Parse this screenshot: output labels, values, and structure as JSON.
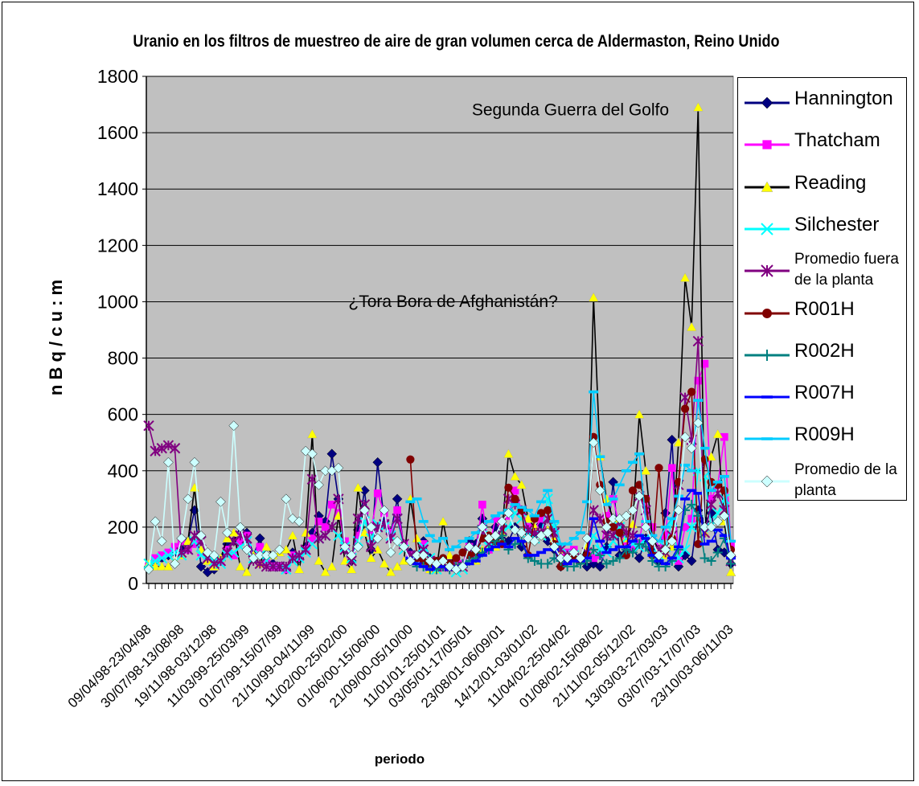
{
  "chart_data": {
    "type": "line",
    "title": "Uranio en los filtros de muestreo de aire de gran volumen cerca de Aldermaston, Reino Unido",
    "xlabel": "periodo",
    "ylabel": "n B q / c u : m",
    "ylim": [
      0,
      1800
    ],
    "yticks": [
      "0",
      "200",
      "400",
      "600",
      "800",
      "1000",
      "1200",
      "1400",
      "1600",
      "1800"
    ],
    "grid": true,
    "legend_position": "right",
    "x_tick_labels": [
      "09/04/98-23/04/98",
      "30/07/98-13/08/98",
      "19/11/98-03/12/98",
      "11/03/99-25/03/99",
      "01/07/99-15/07/99",
      "21/10/99-04/11/99",
      "11/02/00-25/02/00",
      "01/06/00-15/06/00",
      "21/09/00-05/10/00",
      "11/01/01-25/01/01",
      "03/05/01-17/05/01",
      "23/08/01-06/09/01",
      "14/12/01-03/01/02",
      "11/04/02-25/04/02",
      "01/08/02-15/08/02",
      "21/11/02-05/12/02",
      "13/03/03-27/03/03",
      "03/07/03-17/07/03",
      "23/10/03-06/11/03"
    ],
    "annotations": [
      {
        "text": "Segunda Guerra del Golfo",
        "x_index": 82,
        "y": 1690
      },
      {
        "text": "¿Tora Bora de Afghanistán?",
        "x_index": 65,
        "y": 1010
      }
    ],
    "n_points": 90,
    "series": [
      {
        "name": "Hannington",
        "color": "#000080",
        "marker": "diamond",
        "line": "#000080",
        "values": [
          60,
          80,
          90,
          100,
          110,
          120,
          150,
          260,
          60,
          40,
          50,
          80,
          140,
          150,
          200,
          180,
          100,
          160,
          90,
          70,
          60,
          50,
          110,
          90,
          130,
          180,
          240,
          220,
          460,
          300,
          120,
          80,
          190,
          330,
          120,
          430,
          220,
          180,
          300,
          130,
          110,
          100,
          150,
          90,
          70,
          60,
          80,
          50,
          60,
          150,
          140,
          230,
          120,
          200,
          170,
          150,
          200,
          130,
          170,
          180,
          210,
          150,
          120,
          60,
          90,
          100,
          80,
          60,
          70,
          60,
          130,
          360,
          100,
          110,
          120,
          90,
          160,
          120,
          80,
          250,
          510,
          60,
          100,
          80,
          260,
          220,
          250,
          120,
          110,
          70
        ]
      },
      {
        "name": "Thatcham",
        "color": "#FF00FF",
        "marker": "square",
        "line": "#FF00FF",
        "values": [
          60,
          90,
          100,
          110,
          130,
          150,
          120,
          140,
          110,
          90,
          80,
          80,
          120,
          100,
          150,
          170,
          90,
          130,
          80,
          60,
          60,
          50,
          100,
          90,
          120,
          160,
          220,
          200,
          280,
          250,
          150,
          100,
          170,
          260,
          190,
          320,
          250,
          180,
          260,
          140,
          100,
          100,
          140,
          80,
          60,
          60,
          70,
          60,
          70,
          130,
          110,
          280,
          120,
          230,
          220,
          240,
          330,
          260,
          200,
          190,
          230,
          180,
          140,
          100,
          110,
          120,
          90,
          100,
          90,
          100,
          240,
          300,
          200,
          150,
          130,
          140,
          300,
          200,
          120,
          170,
          410,
          80,
          200,
          230,
          720,
          780,
          300,
          350,
          520,
          140
        ]
      },
      {
        "name": "Reading",
        "color": "#FFFF00",
        "marker": "triangle",
        "line": "#000000",
        "values": [
          70,
          60,
          60,
          60,
          80,
          100,
          150,
          340,
          120,
          80,
          60,
          90,
          160,
          180,
          60,
          40,
          100,
          70,
          130,
          100,
          110,
          120,
          170,
          50,
          180,
          530,
          80,
          40,
          60,
          240,
          80,
          50,
          340,
          180,
          90,
          120,
          70,
          40,
          60,
          80,
          300,
          160,
          70,
          50,
          50,
          220,
          100,
          60,
          60,
          120,
          80,
          120,
          130,
          130,
          180,
          460,
          380,
          350,
          230,
          200,
          170,
          190,
          160,
          120,
          100,
          100,
          90,
          130,
          1015,
          450,
          300,
          230,
          220,
          160,
          210,
          600,
          400,
          160,
          120,
          100,
          130,
          500,
          1085,
          910,
          1690,
          180,
          450,
          530,
          220,
          40
        ]
      },
      {
        "name": "Silchester",
        "color": "#00FFFF",
        "marker": "x",
        "line": "#00FFFF",
        "values": [
          70,
          80,
          90,
          100,
          110,
          100,
          120,
          150,
          100,
          90,
          80,
          70,
          100,
          110,
          130,
          150,
          90,
          100,
          80,
          60,
          60,
          50,
          80,
          90,
          110,
          140,
          160,
          170,
          200,
          170,
          130,
          90,
          150,
          220,
          160,
          210,
          200,
          170,
          230,
          120,
          100,
          100,
          130,
          90,
          50,
          60,
          60,
          40,
          50,
          110,
          120,
          170,
          130,
          160,
          190,
          200,
          250,
          230,
          180,
          160,
          170,
          300,
          200,
          130,
          100,
          100,
          90,
          110,
          170,
          120,
          110,
          150,
          200,
          160,
          140,
          130,
          160,
          140,
          100,
          130,
          220,
          90,
          120,
          200,
          400,
          380,
          200,
          250,
          300,
          80
        ]
      },
      {
        "name": "Promedio fuera de la planta",
        "color": "#800080",
        "marker": "star",
        "line": "#800080",
        "values": [
          560,
          470,
          480,
          490,
          480,
          110,
          120,
          170,
          150,
          90,
          70,
          80,
          110,
          150,
          170,
          160,
          80,
          70,
          60,
          60,
          60,
          60,
          90,
          100,
          120,
          370,
          160,
          170,
          200,
          300,
          120,
          80,
          230,
          280,
          130,
          200,
          210,
          160,
          230,
          140,
          100,
          100,
          120,
          80,
          60,
          60,
          60,
          60,
          60,
          110,
          110,
          190,
          140,
          160,
          190,
          300,
          280,
          260,
          190,
          180,
          180,
          230,
          180,
          120,
          100,
          90,
          90,
          110,
          260,
          230,
          170,
          170,
          220,
          180,
          170,
          310,
          260,
          140,
          120,
          110,
          170,
          350,
          660,
          510,
          860,
          180,
          280,
          320,
          260,
          80
        ]
      },
      {
        "name": "R001H",
        "color": "#800000",
        "marker": "circle",
        "line": "#800000",
        "values": [
          null,
          null,
          null,
          null,
          null,
          null,
          null,
          null,
          null,
          null,
          null,
          null,
          null,
          null,
          null,
          null,
          null,
          null,
          null,
          null,
          null,
          null,
          null,
          null,
          null,
          null,
          null,
          null,
          null,
          null,
          null,
          null,
          null,
          null,
          null,
          null,
          null,
          null,
          null,
          null,
          440,
          90,
          80,
          70,
          80,
          90,
          70,
          90,
          110,
          100,
          110,
          160,
          170,
          150,
          140,
          340,
          300,
          260,
          100,
          230,
          250,
          260,
          140,
          60,
          90,
          100,
          80,
          100,
          520,
          350,
          220,
          200,
          180,
          100,
          330,
          350,
          300,
          100,
          410,
          120,
          160,
          360,
          620,
          680,
          140,
          440,
          360,
          350,
          330,
          120
        ]
      },
      {
        "name": "R002H",
        "color": "#008080",
        "marker": "plus",
        "line": "#008080",
        "values": [
          null,
          null,
          null,
          null,
          null,
          null,
          null,
          null,
          null,
          null,
          null,
          null,
          null,
          null,
          null,
          null,
          null,
          null,
          null,
          null,
          null,
          null,
          null,
          null,
          null,
          null,
          null,
          null,
          null,
          null,
          null,
          null,
          null,
          null,
          null,
          null,
          null,
          null,
          null,
          null,
          80,
          60,
          60,
          50,
          50,
          60,
          50,
          60,
          70,
          80,
          90,
          110,
          120,
          150,
          170,
          120,
          140,
          150,
          90,
          80,
          70,
          70,
          90,
          80,
          60,
          60,
          70,
          80,
          120,
          100,
          70,
          80,
          90,
          120,
          110,
          140,
          130,
          80,
          60,
          60,
          80,
          120,
          260,
          280,
          240,
          90,
          80,
          110,
          160,
          70
        ]
      },
      {
        "name": "R007H",
        "color": "#0000FF",
        "marker": "dash",
        "line": "#0000FF",
        "values": [
          null,
          null,
          null,
          null,
          null,
          null,
          null,
          null,
          null,
          null,
          null,
          null,
          null,
          null,
          null,
          null,
          null,
          null,
          null,
          null,
          null,
          null,
          null,
          null,
          null,
          null,
          null,
          null,
          null,
          null,
          null,
          null,
          null,
          null,
          null,
          null,
          null,
          null,
          null,
          null,
          90,
          70,
          60,
          50,
          60,
          60,
          50,
          60,
          60,
          70,
          80,
          100,
          120,
          130,
          140,
          130,
          160,
          150,
          100,
          100,
          110,
          120,
          120,
          90,
          70,
          80,
          80,
          90,
          230,
          150,
          110,
          120,
          130,
          130,
          150,
          170,
          160,
          100,
          80,
          70,
          90,
          130,
          300,
          330,
          320,
          140,
          150,
          190,
          170,
          90
        ]
      },
      {
        "name": "R009H",
        "color": "#00CCFF",
        "marker": "dash",
        "line": "#00CCFF",
        "values": [
          null,
          null,
          null,
          null,
          null,
          null,
          null,
          null,
          null,
          null,
          null,
          null,
          null,
          null,
          null,
          null,
          null,
          null,
          null,
          null,
          null,
          null,
          null,
          null,
          null,
          null,
          null,
          null,
          null,
          null,
          null,
          null,
          null,
          null,
          null,
          null,
          null,
          null,
          null,
          null,
          290,
          300,
          220,
          170,
          150,
          160,
          120,
          130,
          150,
          160,
          180,
          200,
          220,
          240,
          250,
          260,
          280,
          270,
          260,
          240,
          290,
          330,
          220,
          140,
          140,
          160,
          180,
          290,
          680,
          450,
          280,
          300,
          350,
          400,
          430,
          460,
          220,
          170,
          150,
          200,
          230,
          310,
          420,
          400,
          650,
          480,
          330,
          360,
          380,
          150
        ]
      },
      {
        "name": "Promedio de la planta",
        "color": "#CCFFFF",
        "marker": "diamond",
        "line": "#CCFFFF",
        "values": [
          50,
          220,
          150,
          430,
          70,
          160,
          300,
          430,
          170,
          110,
          100,
          290,
          180,
          560,
          200,
          120,
          90,
          100,
          100,
          100,
          120,
          300,
          230,
          220,
          470,
          460,
          350,
          400,
          400,
          410,
          130,
          100,
          130,
          260,
          200,
          160,
          260,
          110,
          150,
          130,
          80,
          100,
          100,
          80,
          70,
          80,
          60,
          50,
          60,
          130,
          120,
          200,
          160,
          170,
          220,
          250,
          190,
          180,
          160,
          150,
          170,
          180,
          130,
          90,
          90,
          110,
          90,
          160,
          500,
          330,
          200,
          230,
          230,
          240,
          260,
          310,
          200,
          150,
          100,
          120,
          150,
          260,
          520,
          480,
          570,
          200,
          200,
          220,
          240,
          100
        ]
      }
    ]
  }
}
